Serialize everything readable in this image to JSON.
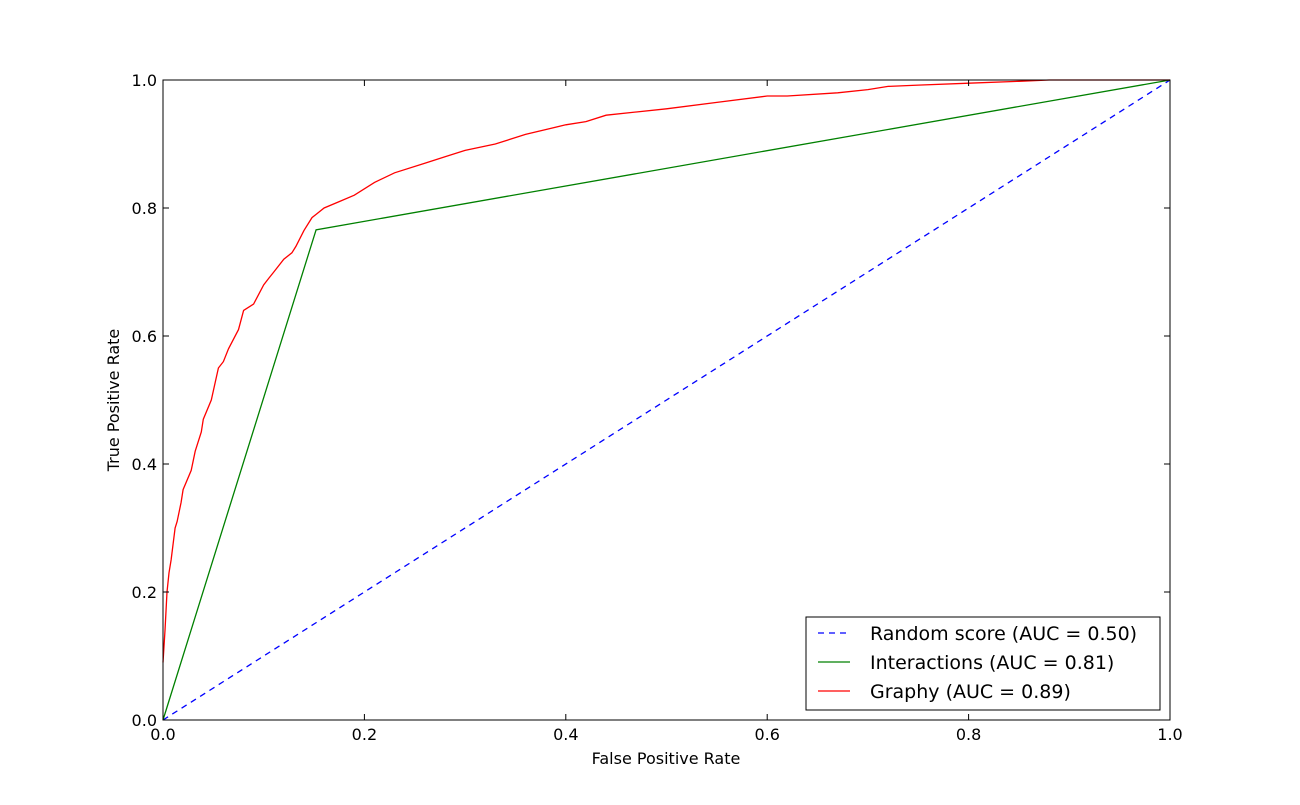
{
  "chart_data": {
    "type": "line",
    "title": "",
    "xlabel": "False Positive Rate",
    "ylabel": "True Positive Rate",
    "xlim": [
      0.0,
      1.0
    ],
    "ylim": [
      0.0,
      1.0
    ],
    "xticks": [
      "0.0",
      "0.2",
      "0.4",
      "0.6",
      "0.8",
      "1.0"
    ],
    "yticks": [
      "0.0",
      "0.2",
      "0.4",
      "0.6",
      "0.8",
      "1.0"
    ],
    "grid": false,
    "legend_position": "lower-right",
    "series": [
      {
        "name": "Random score (AUC = 0.50)",
        "color": "#0000ff",
        "style": "dashed",
        "x": [
          0.0,
          1.0
        ],
        "y": [
          0.0,
          1.0
        ]
      },
      {
        "name": "Interactions (AUC = 0.81)",
        "color": "#008000",
        "style": "solid",
        "x": [
          0.0,
          0.152,
          1.0
        ],
        "y": [
          0.0,
          0.766,
          1.0
        ]
      },
      {
        "name": "Graphy (AUC = 0.89)",
        "color": "#ff0000",
        "style": "solid",
        "x": [
          0.0,
          0.002,
          0.004,
          0.006,
          0.008,
          0.012,
          0.014,
          0.018,
          0.02,
          0.028,
          0.032,
          0.038,
          0.04,
          0.048,
          0.055,
          0.06,
          0.065,
          0.075,
          0.08,
          0.09,
          0.1,
          0.105,
          0.11,
          0.12,
          0.128,
          0.132,
          0.14,
          0.148,
          0.152,
          0.16,
          0.175,
          0.19,
          0.21,
          0.23,
          0.26,
          0.28,
          0.3,
          0.33,
          0.36,
          0.4,
          0.42,
          0.44,
          0.47,
          0.5,
          0.55,
          0.6,
          0.62,
          0.67,
          0.7,
          0.72,
          0.75,
          0.8,
          0.85,
          0.88,
          0.95,
          1.0
        ],
        "y": [
          0.09,
          0.14,
          0.2,
          0.23,
          0.25,
          0.3,
          0.31,
          0.34,
          0.36,
          0.39,
          0.42,
          0.45,
          0.47,
          0.5,
          0.55,
          0.56,
          0.58,
          0.61,
          0.64,
          0.65,
          0.68,
          0.69,
          0.7,
          0.72,
          0.73,
          0.74,
          0.765,
          0.785,
          0.79,
          0.8,
          0.81,
          0.82,
          0.84,
          0.855,
          0.87,
          0.88,
          0.89,
          0.9,
          0.915,
          0.93,
          0.935,
          0.945,
          0.95,
          0.955,
          0.965,
          0.975,
          0.975,
          0.98,
          0.985,
          0.99,
          0.992,
          0.995,
          0.998,
          1.0,
          1.0,
          1.0
        ]
      }
    ]
  }
}
